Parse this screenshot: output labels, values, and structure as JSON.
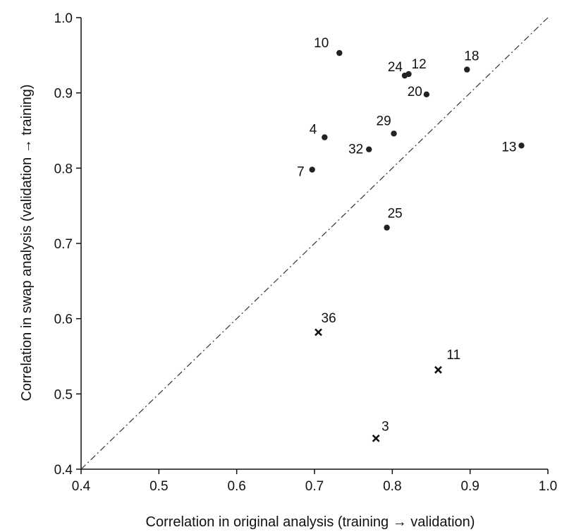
{
  "chart_data": {
    "type": "scatter",
    "xlabel": "Correlation in original analysis (training → validation)",
    "ylabel": "Correlation in swap analysis (validation → training)",
    "xlim": [
      0.4,
      1.0
    ],
    "ylim": [
      0.4,
      1.0
    ],
    "xticks": [
      "0.4",
      "0.5",
      "0.6",
      "0.7",
      "0.8",
      "0.9",
      "1.0"
    ],
    "yticks": [
      "0.4",
      "0.5",
      "0.6",
      "0.7",
      "0.8",
      "0.9",
      "1.0"
    ],
    "grid": false,
    "reference_line": {
      "type": "identity",
      "style": "dash-dot",
      "from": [
        0.4,
        0.4
      ],
      "to": [
        1.0,
        1.0
      ]
    },
    "series": [
      {
        "marker": "dot",
        "points": [
          {
            "label": "10",
            "x": 0.732,
            "y": 0.953
          },
          {
            "label": "12",
            "x": 0.821,
            "y": 0.925
          },
          {
            "label": "24",
            "x": 0.816,
            "y": 0.923
          },
          {
            "label": "18",
            "x": 0.896,
            "y": 0.931
          },
          {
            "label": "20",
            "x": 0.844,
            "y": 0.898
          },
          {
            "label": "29",
            "x": 0.802,
            "y": 0.846
          },
          {
            "label": "4",
            "x": 0.713,
            "y": 0.841
          },
          {
            "label": "32",
            "x": 0.77,
            "y": 0.825
          },
          {
            "label": "13",
            "x": 0.966,
            "y": 0.83
          },
          {
            "label": "7",
            "x": 0.697,
            "y": 0.798
          },
          {
            "label": "25",
            "x": 0.793,
            "y": 0.721
          }
        ]
      },
      {
        "marker": "cross",
        "points": [
          {
            "label": "36",
            "x": 0.705,
            "y": 0.582
          },
          {
            "label": "11",
            "x": 0.859,
            "y": 0.532
          },
          {
            "label": "3",
            "x": 0.779,
            "y": 0.441
          }
        ]
      }
    ]
  }
}
